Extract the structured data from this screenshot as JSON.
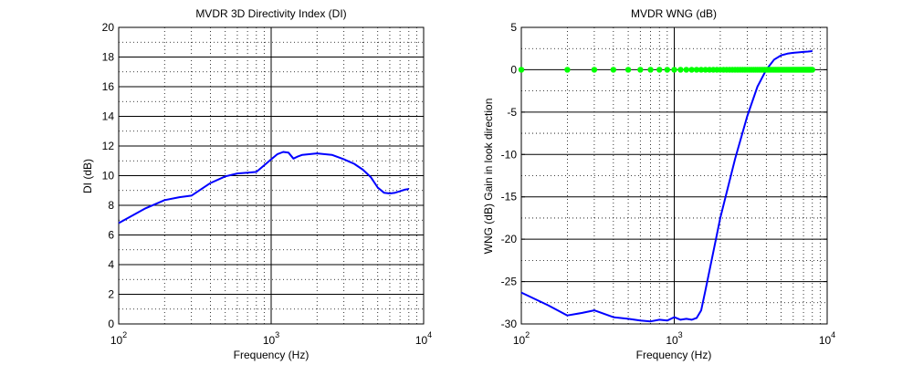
{
  "chart_data": [
    {
      "type": "line",
      "title": "MVDR  3D Directivity Index (DI)",
      "xlabel": "Frequency (Hz)",
      "ylabel": "DI (dB)",
      "xscale": "log",
      "xlim": [
        100,
        10000
      ],
      "ylim": [
        0,
        20
      ],
      "x_tick_bases": [
        "10",
        "10",
        "10"
      ],
      "x_tick_exponents": [
        "2",
        "3",
        "4"
      ],
      "y_ticks": [
        "0",
        "2",
        "4",
        "6",
        "8",
        "10",
        "12",
        "14",
        "16",
        "18",
        "20"
      ],
      "grid": true,
      "series": [
        {
          "color": "#0000ff",
          "x": [
            100,
            150,
            200,
            250,
            300,
            400,
            500,
            600,
            700,
            800,
            900,
            1000,
            1100,
            1200,
            1300,
            1400,
            1500,
            1600,
            1800,
            2000,
            2500,
            3000,
            3500,
            4000,
            4500,
            5000,
            5500,
            6000,
            6500,
            7000,
            7500,
            8000
          ],
          "y": [
            6.8,
            7.8,
            8.35,
            8.55,
            8.65,
            9.5,
            9.95,
            10.15,
            10.2,
            10.25,
            10.7,
            11.1,
            11.45,
            11.6,
            11.55,
            11.15,
            11.3,
            11.4,
            11.45,
            11.5,
            11.4,
            11.1,
            10.8,
            10.4,
            9.9,
            9.2,
            8.85,
            8.8,
            8.85,
            8.95,
            9.05,
            9.1
          ]
        }
      ]
    },
    {
      "type": "line",
      "title": "MVDR  WNG  (dB)",
      "xlabel": "Frequency (Hz)",
      "ylabel": "WNG (dB)  Gain in look direction",
      "xscale": "log",
      "xlim": [
        100,
        10000
      ],
      "ylim": [
        -30,
        5
      ],
      "x_tick_bases": [
        "10",
        "10",
        "10"
      ],
      "x_tick_exponents": [
        "2",
        "3",
        "4"
      ],
      "y_ticks": [
        "-30",
        "-25",
        "-20",
        "-15",
        "-10",
        "-5",
        "0",
        "5"
      ],
      "grid": true,
      "series": [
        {
          "color": "#0000ff",
          "x": [
            100,
            150,
            200,
            250,
            300,
            400,
            500,
            600,
            700,
            800,
            900,
            1000,
            1100,
            1200,
            1300,
            1400,
            1500,
            1600,
            1800,
            2000,
            2500,
            3000,
            3500,
            4000,
            4500,
            5000,
            5500,
            6000,
            6500,
            7000,
            7500,
            8000
          ],
          "y": [
            -26.3,
            -27.8,
            -29.0,
            -28.7,
            -28.4,
            -29.2,
            -29.4,
            -29.6,
            -29.7,
            -29.5,
            -29.6,
            -29.2,
            -29.5,
            -29.4,
            -29.5,
            -29.3,
            -28.4,
            -26.0,
            -21.5,
            -17.5,
            -10.5,
            -5.5,
            -2.0,
            0.0,
            1.2,
            1.7,
            1.9,
            2.0,
            2.05,
            2.1,
            2.15,
            2.2
          ]
        },
        {
          "color": "#00ff00",
          "marker": "dot",
          "x_start": 100,
          "x_step": 100,
          "x_stop": 8000,
          "y": 0
        }
      ]
    }
  ]
}
